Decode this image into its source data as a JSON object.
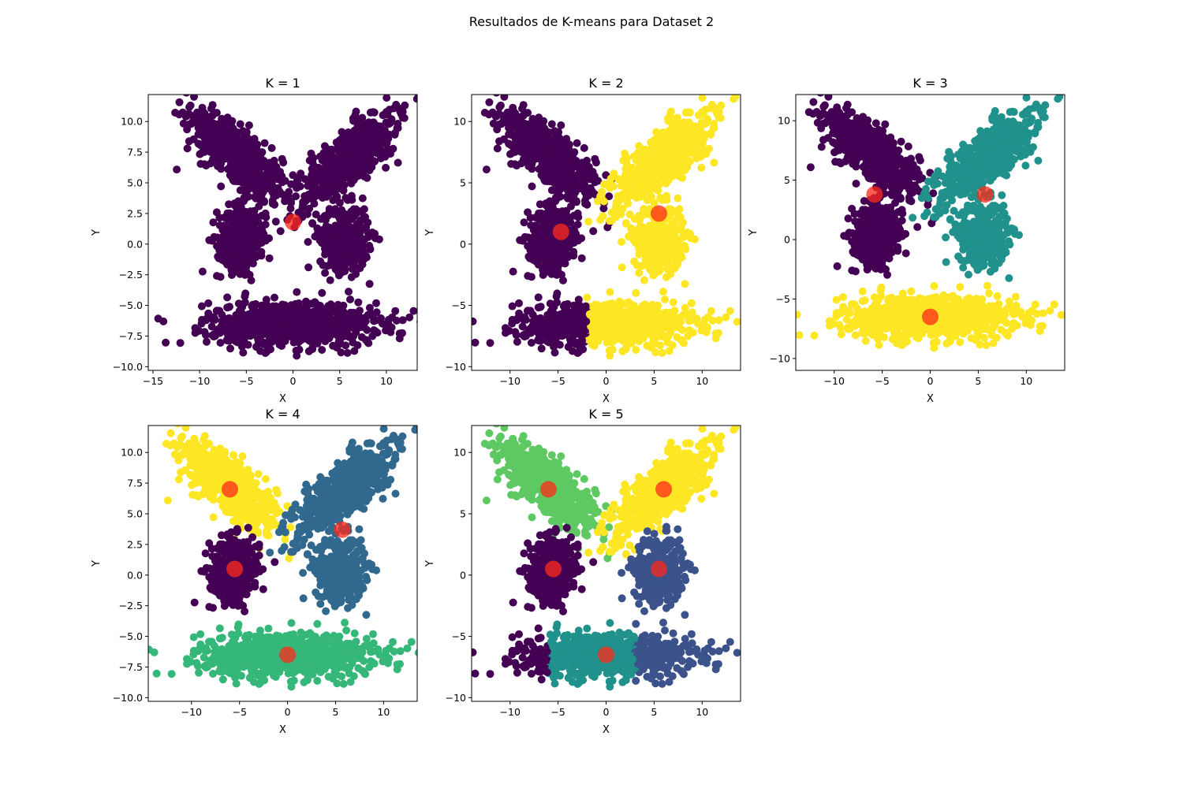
{
  "figure": {
    "suptitle": "Resultados de K-means para Dataset 2"
  },
  "colors": {
    "centroid": "#ff2a1a",
    "viridis_k1": [
      "#440154"
    ],
    "viridis_k2": [
      "#440154",
      "#fde725"
    ],
    "viridis_k3": [
      "#440154",
      "#21918c",
      "#fde725"
    ],
    "viridis_k4": [
      "#440154",
      "#31688e",
      "#35b779",
      "#fde725"
    ],
    "viridis_k5": [
      "#440154",
      "#3b528b",
      "#21918c",
      "#5ec962",
      "#fde725"
    ]
  },
  "chart_data": [
    {
      "type": "scatter",
      "title": "K = 1",
      "xlabel": "X",
      "ylabel": "Y",
      "xlim": [
        -15.5,
        13.3
      ],
      "ylim": [
        -10.3,
        12.2
      ],
      "xticks": [
        -15,
        -10,
        -5,
        0,
        5,
        10
      ],
      "yticks": [
        -10.0,
        -7.5,
        -5.0,
        -2.5,
        0.0,
        2.5,
        5.0,
        7.5,
        10.0
      ],
      "tick_format": "1dp",
      "grid": false,
      "legend": "none",
      "clusters": [
        "A",
        "B",
        "C",
        "D",
        "E"
      ],
      "labels": {
        "A": 0,
        "B": 0,
        "C": 0,
        "D": 0,
        "E": 0
      },
      "centroids": [
        [
          0.0,
          1.8
        ]
      ]
    },
    {
      "type": "scatter",
      "title": "K = 2",
      "xlabel": "X",
      "ylabel": "Y",
      "xlim": [
        -14.0,
        14.0
      ],
      "ylim": [
        -10.3,
        12.2
      ],
      "xticks": [
        -10,
        -5,
        0,
        5,
        10
      ],
      "yticks": [
        -10,
        -5,
        0,
        5,
        10
      ],
      "tick_format": "int",
      "grid": false,
      "legend": "none",
      "clusters": [
        "A",
        "B",
        "C",
        "D",
        "E"
      ],
      "labels": {
        "A": 0,
        "B": 1,
        "C": 0,
        "D": 1,
        "E": "split-x-2:0|1"
      },
      "centroids": [
        [
          -4.7,
          1.0
        ],
        [
          5.5,
          2.5
        ]
      ]
    },
    {
      "type": "scatter",
      "title": "K = 3",
      "xlabel": "X",
      "ylabel": "Y",
      "xlim": [
        -14.0,
        14.0
      ],
      "ylim": [
        -11.0,
        12.2
      ],
      "xticks": [
        -10,
        -5,
        0,
        5,
        10
      ],
      "yticks": [
        -10,
        -5,
        0,
        5,
        10
      ],
      "tick_format": "int",
      "grid": false,
      "legend": "none",
      "clusters": [
        "A",
        "B",
        "C",
        "D",
        "E"
      ],
      "labels": {
        "A": 0,
        "B": 1,
        "C": 0,
        "D": 1,
        "E": 2
      },
      "centroids": [
        [
          -5.8,
          3.8
        ],
        [
          5.7,
          3.8
        ],
        [
          0.0,
          -6.5
        ]
      ]
    },
    {
      "type": "scatter",
      "title": "K = 4",
      "xlabel": "X",
      "ylabel": "Y",
      "xlim": [
        -14.5,
        13.5
      ],
      "ylim": [
        -10.3,
        12.2
      ],
      "xticks": [
        -10,
        -5,
        0,
        5,
        10
      ],
      "yticks": [
        -10.0,
        -7.5,
        -5.0,
        -2.5,
        0.0,
        2.5,
        5.0,
        7.5,
        10.0
      ],
      "tick_format": "1dp",
      "grid": false,
      "legend": "none",
      "clusters": [
        "A",
        "B",
        "C",
        "D",
        "E"
      ],
      "labels": {
        "A": 3,
        "B": 1,
        "C": 0,
        "D": 1,
        "E": "split-x--6:0|2"
      },
      "centroids": [
        [
          -6.0,
          7.0
        ],
        [
          5.7,
          3.7
        ],
        [
          -5.5,
          0.5
        ],
        [
          0.0,
          -6.5
        ]
      ]
    },
    {
      "type": "scatter",
      "title": "K = 5",
      "xlabel": "X",
      "ylabel": "Y",
      "xlim": [
        -14.0,
        14.0
      ],
      "ylim": [
        -10.3,
        12.2
      ],
      "xticks": [
        -10,
        -5,
        0,
        5,
        10
      ],
      "yticks": [
        -10,
        -5,
        0,
        5,
        10
      ],
      "tick_format": "int",
      "grid": false,
      "legend": "none",
      "clusters": [
        "A",
        "B",
        "C",
        "D",
        "E"
      ],
      "labels": {
        "A": 3,
        "B": 4,
        "C": 0,
        "D": 1,
        "E": "split-x3:0:-6|2|1"
      },
      "centroids": [
        [
          -6.0,
          7.0
        ],
        [
          6.0,
          7.0
        ],
        [
          -5.5,
          0.5
        ],
        [
          5.5,
          0.5
        ],
        [
          0.0,
          -6.5
        ]
      ]
    }
  ],
  "cluster_shapes": {
    "A": {
      "cx": -6.0,
      "cy": 7.2,
      "sx": 3.0,
      "sy": 1.1,
      "angle": -35,
      "n": 520
    },
    "B": {
      "cx": 6.0,
      "cy": 7.0,
      "sx": 3.0,
      "sy": 1.1,
      "angle": 35,
      "n": 520
    },
    "C": {
      "cx": -5.5,
      "cy": 0.5,
      "sx": 1.3,
      "sy": 1.3,
      "angle": 0,
      "n": 340
    },
    "D": {
      "cx": 5.5,
      "cy": 0.5,
      "sx": 1.3,
      "sy": 1.3,
      "angle": 0,
      "n": 340
    },
    "E": {
      "cx": 0.0,
      "cy": -6.5,
      "sx": 4.5,
      "sy": 0.9,
      "angle": 0,
      "n": 800
    }
  }
}
